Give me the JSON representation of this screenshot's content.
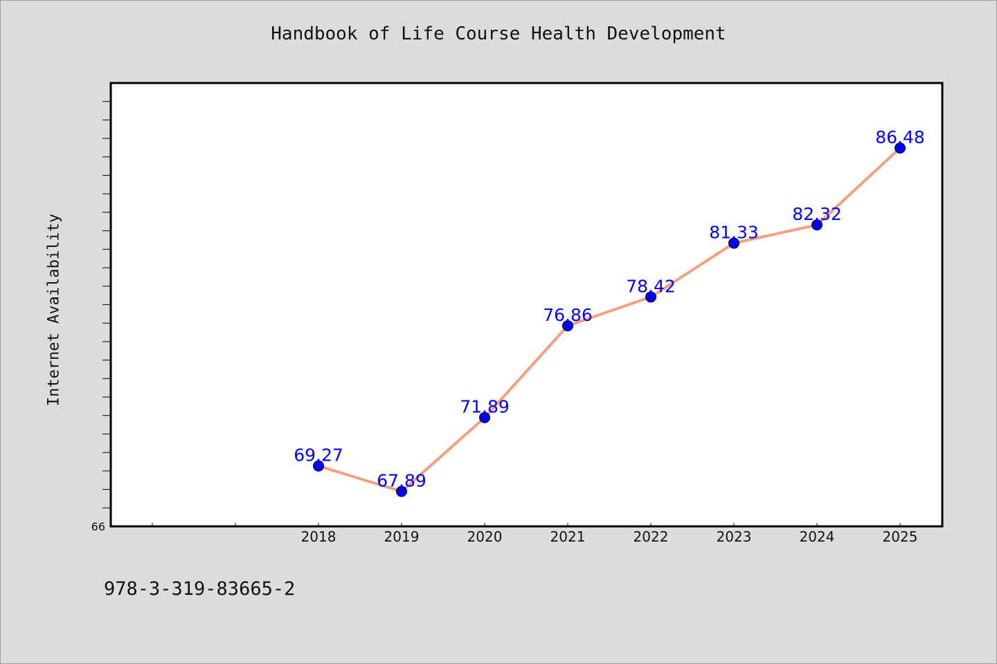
{
  "chart_data": {
    "type": "line",
    "title": "Handbook of Life Course Health Development",
    "ylabel": "Internet Availability",
    "x": [
      "2018",
      "2019",
      "2020",
      "2021",
      "2022",
      "2023",
      "2024",
      "2025"
    ],
    "series": [
      {
        "values": [
          69.27,
          67.89,
          71.89,
          76.86,
          78.42,
          81.33,
          82.32,
          86.48
        ],
        "data_labels": [
          "69.27",
          "67.89",
          "71.89",
          "76.86",
          "78.42",
          "81.33",
          "82.32",
          "86.48"
        ]
      }
    ],
    "ylim": [
      66,
      90
    ],
    "ytick_labels": [
      "66"
    ],
    "x_slots_before_first": 2,
    "grid": false,
    "legend": "none",
    "line_color": "#f4a07f",
    "marker_color": "#0000ff",
    "label_color": "#0000ff"
  },
  "footer": {
    "isbn": "978-3-319-83665-2"
  }
}
